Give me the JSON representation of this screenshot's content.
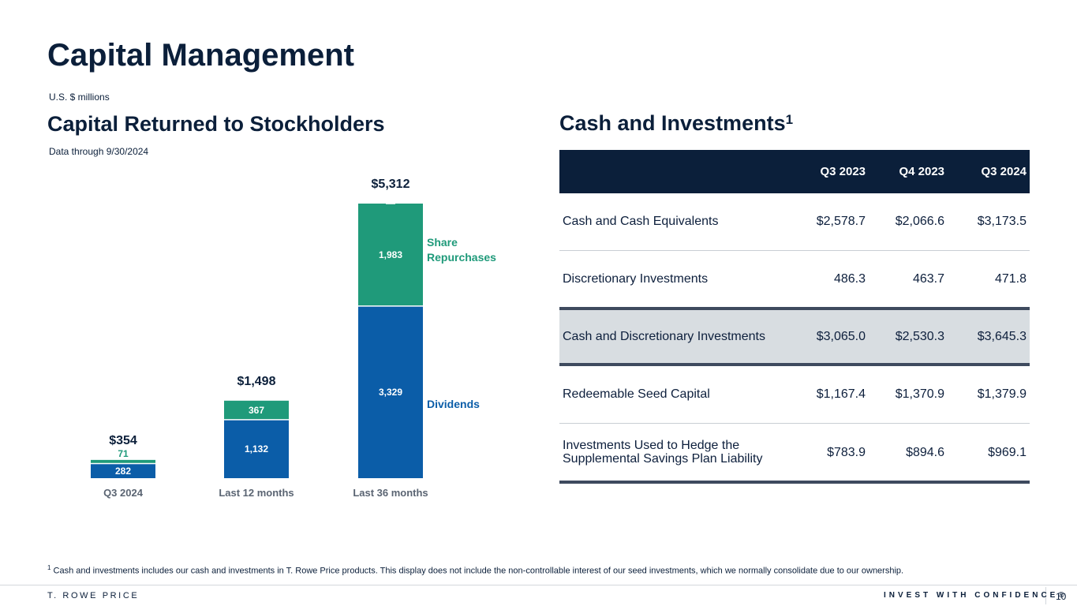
{
  "page": {
    "title": "Capital Management",
    "units": "U.S. $ millions",
    "page_number": "10"
  },
  "left": {
    "heading": "Capital Returned to Stockholders",
    "data_through": "Data through 9/30/2024"
  },
  "chart_data": {
    "type": "bar",
    "stacked": true,
    "title": "",
    "xlabel": "",
    "ylabel": "",
    "categories": [
      "Q3 2024",
      "Last 12 months",
      "Last 36 months"
    ],
    "series": [
      {
        "name": "Dividends",
        "values": [
          282,
          1132,
          3329
        ],
        "color": "#0b5da8"
      },
      {
        "name": "Share Repurchases",
        "values": [
          71,
          367,
          1983
        ],
        "color": "#1f9a7a"
      }
    ],
    "totals": [
      "$354",
      "$1,498",
      "$5,312"
    ],
    "ylim": [
      0,
      5312
    ],
    "grid": false,
    "legend": "inline-right"
  },
  "right": {
    "heading": "Cash and Investments",
    "heading_sup": "1",
    "table": {
      "columns": [
        "",
        "Q3 2023",
        "Q4 2023",
        "Q3 2024"
      ],
      "rows": [
        {
          "label": "Cash and Cash Equivalents",
          "values": [
            "$2,578.7",
            "$2,066.6",
            "$3,173.5"
          ]
        },
        {
          "label": "Discretionary Investments",
          "values": [
            "486.3",
            "463.7",
            "471.8"
          ]
        },
        {
          "label": "Cash and Discretionary Investments",
          "values": [
            "$3,065.0",
            "$2,530.3",
            "$3,645.3"
          ]
        },
        {
          "label": "Redeemable Seed Capital",
          "values": [
            "$1,167.4",
            "$1,370.9",
            "$1,379.9"
          ]
        },
        {
          "label_line1": "Investments Used to Hedge the",
          "label_line2": "Supplemental Savings Plan Liability",
          "values": [
            "$783.9",
            "$894.6",
            "$969.1"
          ]
        }
      ]
    }
  },
  "footnote": {
    "marker": "1",
    "text": "Cash and investments includes our cash and investments in T. Rowe Price products. This display does not include the non-controllable interest of our seed investments, which we normally consolidate due to our ownership."
  },
  "footer": {
    "brand": "T. ROWE PRICE",
    "tagline": "INVEST WITH CONFIDENCE®"
  }
}
